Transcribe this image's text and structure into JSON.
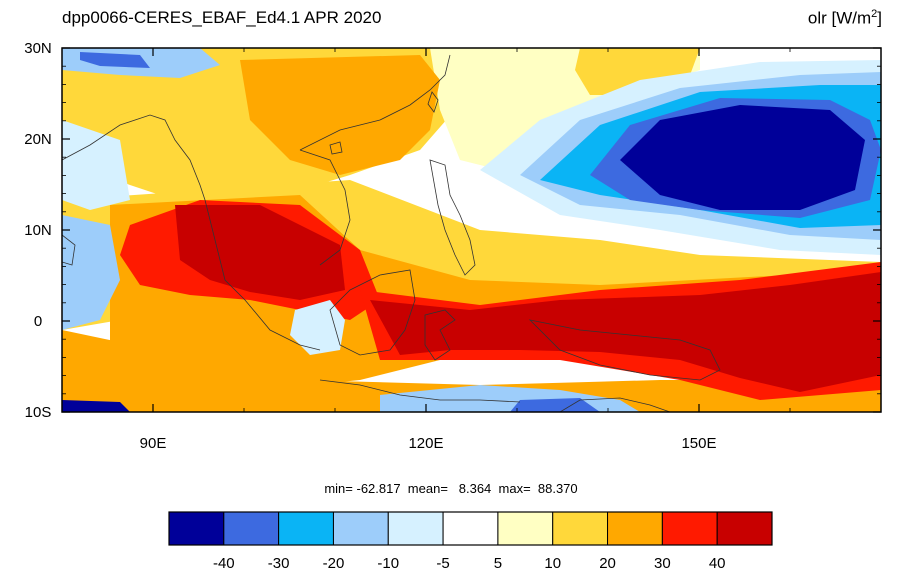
{
  "title": {
    "left": "dpp0066-CERES_EBAF_Ed4.1  APR 2020",
    "variable": "olr [W/m",
    "variable_exp": "2",
    "variable_end": "]"
  },
  "stats": {
    "text": "min= -62.817  mean=   8.364  max=  88.370"
  },
  "map": {
    "lat_range": [
      -10,
      30
    ],
    "lon_range": [
      80,
      170
    ],
    "lat_ticks": [
      {
        "value": 30,
        "label": "30N"
      },
      {
        "value": 20,
        "label": "20N"
      },
      {
        "value": 10,
        "label": "10N"
      },
      {
        "value": 0,
        "label": "0"
      },
      {
        "value": -10,
        "label": "10S"
      }
    ],
    "lon_ticks": [
      {
        "value": 90,
        "label": "90E"
      },
      {
        "value": 120,
        "label": "120E"
      },
      {
        "value": 150,
        "label": "150E"
      }
    ],
    "colors": {
      "c1": "#000099",
      "c2": "#3d6ae0",
      "c3": "#0ab4f5",
      "c4": "#9dcdfa",
      "c5": "#d6f1ff",
      "c6": "#ffffff",
      "c7": "#ffffc3",
      "c8": "#ffd83a",
      "c9": "#ffa800",
      "c10": "#ff1a00",
      "c11": "#c80000"
    }
  },
  "colorbar": {
    "colors": [
      "#000099",
      "#3d6ae0",
      "#0ab4f5",
      "#9dcdfa",
      "#d6f1ff",
      "#ffffff",
      "#ffffc3",
      "#ffd83a",
      "#ffa800",
      "#ff1a00",
      "#c80000"
    ],
    "labels": [
      "-40",
      "-30",
      "-20",
      "-10",
      "-5",
      "5",
      "10",
      "20",
      "30",
      "40"
    ]
  }
}
